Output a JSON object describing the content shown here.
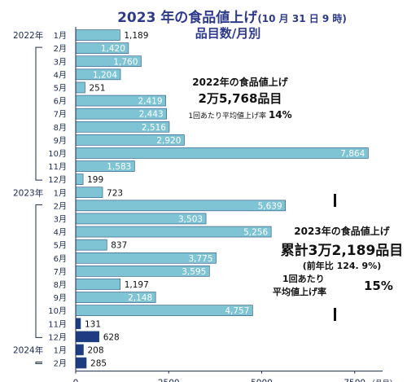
{
  "header": {
    "title_main": "2023 年の食品値上げ",
    "title_sub": "(10 月 31 日 9 時)",
    "title_line2": "品目数/月別"
  },
  "chart_data": {
    "type": "bar",
    "orientation": "horizontal",
    "categories": [
      {
        "year": "2022年",
        "month": "1月"
      },
      {
        "year": "",
        "month": "2月"
      },
      {
        "year": "",
        "month": "3月"
      },
      {
        "year": "",
        "month": "4月"
      },
      {
        "year": "",
        "month": "5月"
      },
      {
        "year": "",
        "month": "6月"
      },
      {
        "year": "",
        "month": "7月"
      },
      {
        "year": "",
        "month": "8月"
      },
      {
        "year": "",
        "month": "9月"
      },
      {
        "year": "",
        "month": "10月"
      },
      {
        "year": "",
        "month": "11月"
      },
      {
        "year": "",
        "month": "12月"
      },
      {
        "year": "2023年",
        "month": "1月"
      },
      {
        "year": "",
        "month": "2月"
      },
      {
        "year": "",
        "month": "3月"
      },
      {
        "year": "",
        "month": "4月"
      },
      {
        "year": "",
        "month": "5月"
      },
      {
        "year": "",
        "month": "6月"
      },
      {
        "year": "",
        "month": "7月"
      },
      {
        "year": "",
        "month": "8月"
      },
      {
        "year": "",
        "month": "9月"
      },
      {
        "year": "",
        "month": "10月"
      },
      {
        "year": "",
        "month": "11月"
      },
      {
        "year": "",
        "month": "12月"
      },
      {
        "year": "2024年",
        "month": "1月"
      },
      {
        "year": "",
        "month": "2月"
      }
    ],
    "values": [
      1189,
      1420,
      1760,
      1204,
      251,
      2419,
      2443,
      2516,
      2920,
      7864,
      1583,
      199,
      723,
      5639,
      3503,
      5256,
      837,
      3775,
      3595,
      1197,
      2148,
      4757,
      131,
      628,
      208,
      285
    ],
    "value_labels": [
      "1,189",
      "1,420",
      "1,760",
      "1,204",
      "251",
      "2,419",
      "2,443",
      "2,516",
      "2,920",
      "7,864",
      "1,583",
      "199",
      "723",
      "5,639",
      "3,503",
      "5,256",
      "837",
      "3,775",
      "3,595",
      "1,197",
      "2,148",
      "4,757",
      "131",
      "628",
      "208",
      "285"
    ],
    "series_kind": [
      "past",
      "past",
      "past",
      "past",
      "past",
      "past",
      "past",
      "past",
      "past",
      "past",
      "past",
      "past",
      "past",
      "past",
      "past",
      "past",
      "past",
      "past",
      "past",
      "past",
      "past",
      "past",
      "future",
      "future",
      "future",
      "future"
    ],
    "xlim": [
      0,
      8250
    ],
    "x_ticks": [
      0,
      2500,
      5000,
      7500
    ],
    "x_tick_labels": [
      "0",
      "2500",
      "5000",
      "7500"
    ],
    "x_unit": "（品目）",
    "colors": {
      "past": "#7ec4d4",
      "future": "#1f3b82",
      "axis": "#1a2a55",
      "label": "#ffffff",
      "label_dark": "#111111"
    }
  },
  "annotation_2022": {
    "title": "2022年の食品値上げ",
    "value": "2万5,768品目",
    "avg_label": "1回あたり平均値上げ率",
    "avg_value": "14%"
  },
  "annotation_2023": {
    "title": "2023年の食品値上げ",
    "value": "累計3万2,189品目",
    "yoy": "(前年比 124. 9%)",
    "avg_label_line1": "1回あたり",
    "avg_label_line2": "平均値上げ率",
    "avg_value": "15%"
  }
}
